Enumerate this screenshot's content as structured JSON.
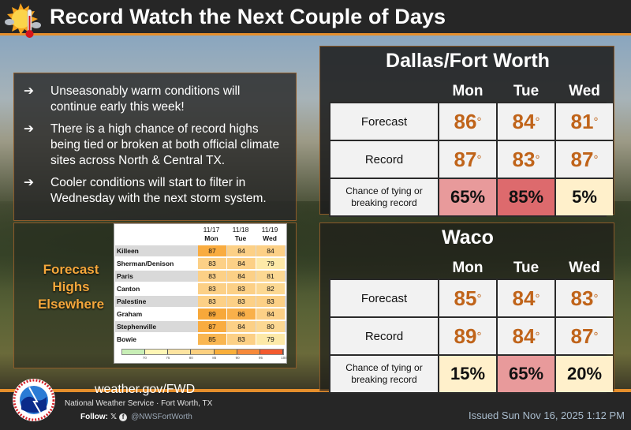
{
  "header": {
    "title": "Record Watch the Next Couple of Days",
    "icon": "sun-thermometer-icon"
  },
  "info": {
    "bullet_icon": "➔",
    "bullets": [
      "Unseasonably warm conditions will continue early this week!",
      "There is a high chance of record highs being tied or broken at both official climate sites across North & Central TX.",
      "Cooler conditions will start to filter in Wednesday with the next storm system."
    ]
  },
  "elsewhere": {
    "label_lines": [
      "Forecast",
      "Highs",
      "Elsewhere"
    ],
    "columns": [
      {
        "date": "11/17",
        "day": "Mon"
      },
      {
        "date": "11/18",
        "day": "Tue"
      },
      {
        "date": "11/19",
        "day": "Wed"
      }
    ],
    "rows": [
      {
        "city": "Killeen",
        "values": [
          87,
          84,
          84
        ]
      },
      {
        "city": "Sherman/Denison",
        "values": [
          83,
          84,
          79
        ]
      },
      {
        "city": "Paris",
        "values": [
          83,
          84,
          81
        ]
      },
      {
        "city": "Canton",
        "values": [
          83,
          83,
          82
        ]
      },
      {
        "city": "Palestine",
        "values": [
          83,
          83,
          83
        ]
      },
      {
        "city": "Graham",
        "values": [
          89,
          86,
          84
        ]
      },
      {
        "city": "Stephenville",
        "values": [
          87,
          84,
          80
        ]
      },
      {
        "city": "Bowie",
        "values": [
          85,
          83,
          79
        ]
      }
    ],
    "legend": {
      "ticks": [
        "70",
        "75",
        "80",
        "85",
        "90",
        "95",
        "100"
      ],
      "colors": [
        "#c8eeb6",
        "#fff6b5",
        "#fde4a0",
        "#fcd080",
        "#f9ae3a",
        "#f6893a",
        "#f35a2f"
      ]
    },
    "cell_colors": {
      "79": "#fde9a8",
      "80": "#fcd892",
      "81": "#fcd892",
      "82": "#fcd892",
      "83": "#fcd086",
      "84": "#fcd086",
      "85": "#f9b651",
      "86": "#f9b04a",
      "87": "#f9ac40",
      "89": "#f7a83a"
    }
  },
  "sites": [
    {
      "name": "Dallas/Fort Worth",
      "days": [
        "Mon",
        "Tue",
        "Wed"
      ],
      "row_labels": [
        "Forecast",
        "Record",
        "Chance of tying or breaking record"
      ],
      "forecast": [
        "86",
        "84",
        "81"
      ],
      "record": [
        "87",
        "83",
        "87"
      ],
      "chance": [
        "65%",
        "85%",
        "5%"
      ],
      "chance_colors": [
        "#e89a9b",
        "#dd6a6d",
        "#fff0cb"
      ]
    },
    {
      "name": "Waco",
      "days": [
        "Mon",
        "Tue",
        "Wed"
      ],
      "row_labels": [
        "Forecast",
        "Record",
        "Chance of tying or breaking record"
      ],
      "forecast": [
        "85",
        "84",
        "83"
      ],
      "record": [
        "89",
        "84",
        "87"
      ],
      "chance": [
        "15%",
        "65%",
        "20%"
      ],
      "chance_colors": [
        "#fff0cb",
        "#e89a9b",
        "#fff0cb"
      ]
    }
  ],
  "degree_symbol": "°",
  "footer": {
    "logo": "nws-logo-icon",
    "url": "weather.gov/FWD",
    "org": "National Weather Service · Fort Worth, TX",
    "follow_label": "Follow:",
    "x_icon": "𝕏",
    "fb_icon": "f",
    "handle": "@NWSFortWorth",
    "issued": "Issued Sun Nov 16, 2025 1:12 PM"
  },
  "colors": {
    "accent_orange": "#e58e2c",
    "temp_text": "#c0641a",
    "label_orange": "#f5a73b",
    "background": "#262626"
  }
}
